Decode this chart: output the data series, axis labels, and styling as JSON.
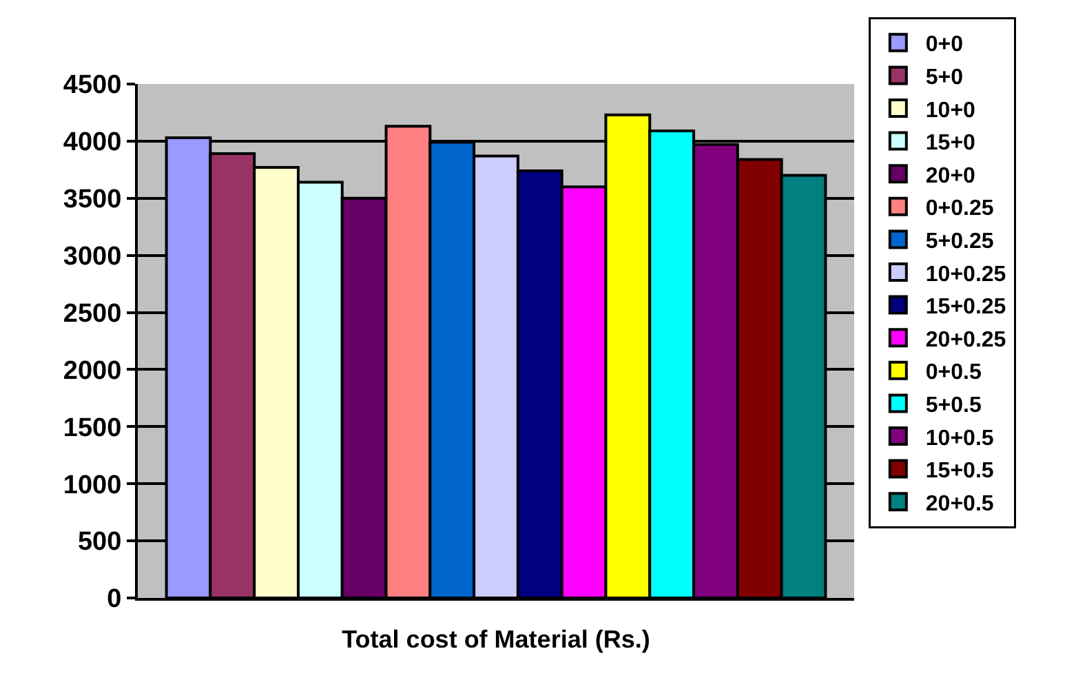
{
  "chart_data": {
    "type": "bar",
    "xlabel": "Total cost of Material (Rs.)",
    "categories": [
      null
    ],
    "ylim": [
      0,
      4500
    ],
    "yticks": [
      0,
      500,
      1000,
      1500,
      2000,
      2500,
      3000,
      3500,
      4000,
      4500
    ],
    "grid": "y",
    "legend": "right",
    "series": [
      {
        "name": "0+0",
        "color": "#9999ff",
        "values": [
          4030
        ]
      },
      {
        "name": "5+0",
        "color": "#993366",
        "values": [
          3890
        ]
      },
      {
        "name": "10+0",
        "color": "#ffffcc",
        "values": [
          3770
        ]
      },
      {
        "name": "15+0",
        "color": "#ccffff",
        "values": [
          3640
        ]
      },
      {
        "name": "20+0",
        "color": "#660066",
        "values": [
          3500
        ]
      },
      {
        "name": "0+0.25",
        "color": "#ff8080",
        "values": [
          4130
        ]
      },
      {
        "name": "5+0.25",
        "color": "#0066cc",
        "values": [
          3990
        ]
      },
      {
        "name": "10+0.25",
        "color": "#ccccff",
        "values": [
          3870
        ]
      },
      {
        "name": "15+0.25",
        "color": "#000080",
        "values": [
          3740
        ]
      },
      {
        "name": "20+0.25",
        "color": "#ff00ff",
        "values": [
          3600
        ]
      },
      {
        "name": "0+0.5",
        "color": "#ffff00",
        "values": [
          4230
        ]
      },
      {
        "name": "5+0.5",
        "color": "#00ffff",
        "values": [
          4090
        ]
      },
      {
        "name": "10+0.5",
        "color": "#800080",
        "values": [
          3970
        ]
      },
      {
        "name": "15+0.5",
        "color": "#800000",
        "values": [
          3840
        ]
      },
      {
        "name": "20+0.5",
        "color": "#008080",
        "values": [
          3700
        ]
      }
    ]
  }
}
